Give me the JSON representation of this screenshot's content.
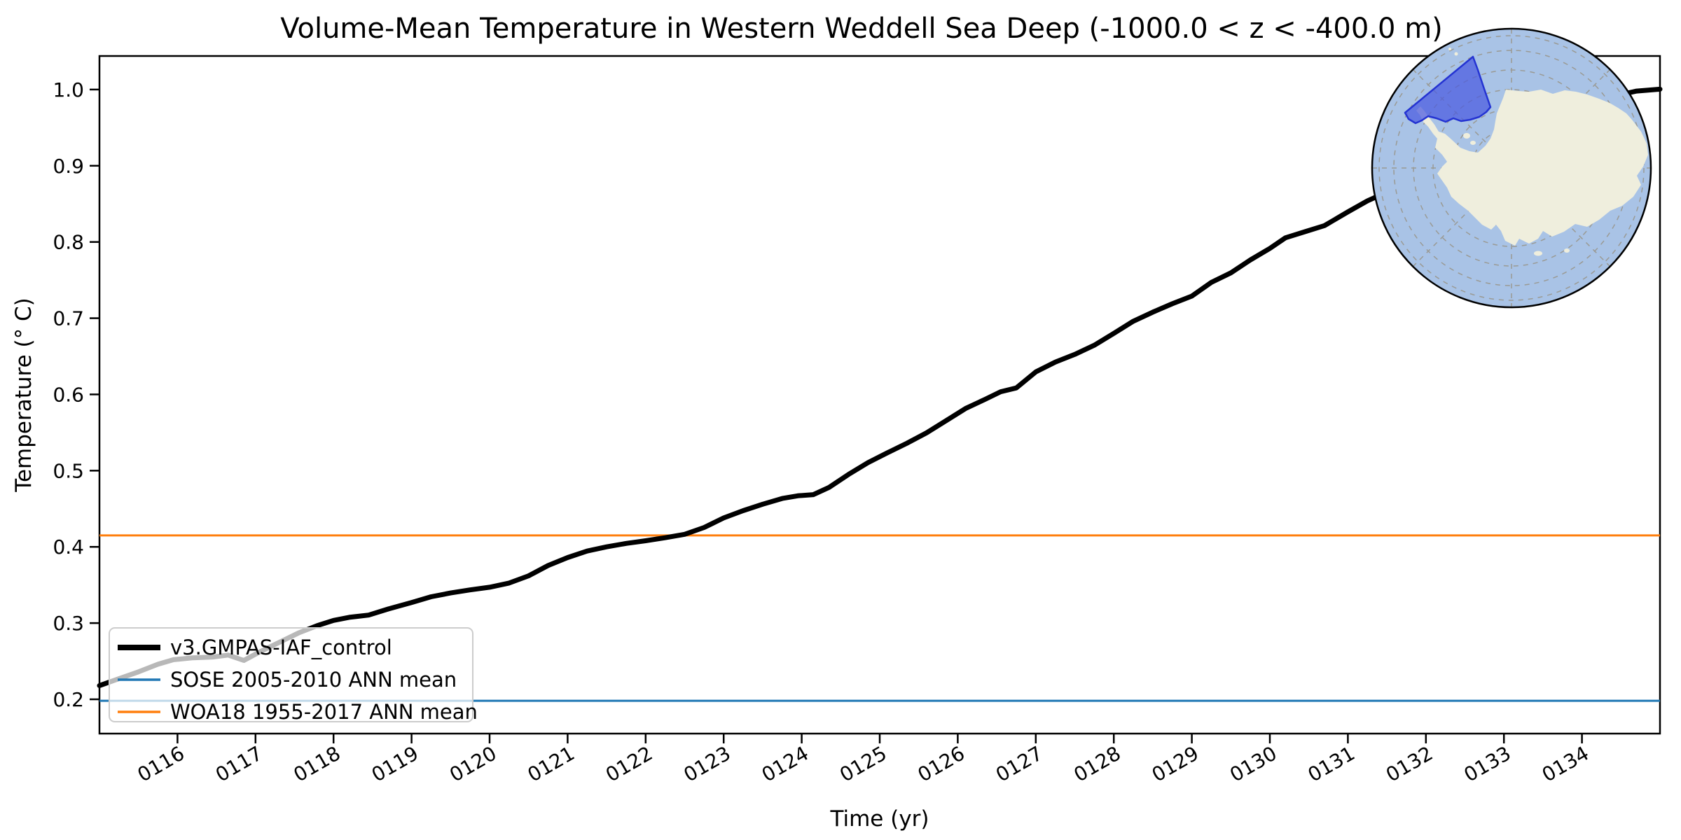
{
  "figure": {
    "background": "#ffffff"
  },
  "title": "Volume-Mean Temperature in Western Weddell Sea Deep (-1000.0 < z < -400.0 m)",
  "chart_data": {
    "type": "line",
    "title": "Volume-Mean Temperature in Western Weddell Sea Deep (-1000.0 < z < -400.0 m)",
    "xlabel": "Time (yr)",
    "ylabel": "Temperature (° C)",
    "xlim": [
      115.0,
      135.0
    ],
    "ylim": [
      0.155,
      1.044
    ],
    "grid": false,
    "legend_position": "lower left",
    "x_tick_values": [
      116,
      117,
      118,
      119,
      120,
      121,
      122,
      123,
      124,
      125,
      126,
      127,
      128,
      129,
      130,
      131,
      132,
      133,
      134
    ],
    "x_tick_labels": [
      "0116",
      "0117",
      "0118",
      "0119",
      "0120",
      "0121",
      "0122",
      "0123",
      "0124",
      "0125",
      "0126",
      "0127",
      "0128",
      "0129",
      "0130",
      "0131",
      "0132",
      "0133",
      "0134"
    ],
    "y_tick_values": [
      0.2,
      0.3,
      0.4,
      0.5,
      0.6,
      0.7,
      0.8,
      0.9,
      1.0
    ],
    "y_tick_labels": [
      "0.2",
      "0.3",
      "0.4",
      "0.5",
      "0.6",
      "0.7",
      "0.8",
      "0.9",
      "1.0"
    ],
    "series": [
      {
        "name": "v3.GMPAS-IAF_control",
        "color": "#000000",
        "line_width": 7,
        "points": [
          [
            115.0,
            0.218
          ],
          [
            115.25,
            0.227
          ],
          [
            115.5,
            0.236
          ],
          [
            115.75,
            0.246
          ],
          [
            115.95,
            0.252
          ],
          [
            116.2,
            0.2545
          ],
          [
            116.45,
            0.2555
          ],
          [
            116.65,
            0.258
          ],
          [
            116.85,
            0.251
          ],
          [
            117.05,
            0.262
          ],
          [
            117.3,
            0.2745
          ],
          [
            117.55,
            0.287
          ],
          [
            117.8,
            0.297
          ],
          [
            118.0,
            0.3035
          ],
          [
            118.2,
            0.3075
          ],
          [
            118.45,
            0.3105
          ],
          [
            118.7,
            0.3185
          ],
          [
            119.0,
            0.327
          ],
          [
            119.25,
            0.3345
          ],
          [
            119.5,
            0.3395
          ],
          [
            119.75,
            0.3435
          ],
          [
            120.0,
            0.347
          ],
          [
            120.25,
            0.3525
          ],
          [
            120.5,
            0.362
          ],
          [
            120.75,
            0.3755
          ],
          [
            121.0,
            0.386
          ],
          [
            121.25,
            0.3945
          ],
          [
            121.5,
            0.4
          ],
          [
            121.75,
            0.4045
          ],
          [
            122.0,
            0.408
          ],
          [
            122.25,
            0.412
          ],
          [
            122.5,
            0.4165
          ],
          [
            122.75,
            0.4255
          ],
          [
            123.0,
            0.438
          ],
          [
            123.25,
            0.4475
          ],
          [
            123.5,
            0.456
          ],
          [
            123.75,
            0.4635
          ],
          [
            123.95,
            0.467
          ],
          [
            124.15,
            0.4685
          ],
          [
            124.35,
            0.478
          ],
          [
            124.6,
            0.495
          ],
          [
            124.85,
            0.5105
          ],
          [
            125.1,
            0.5235
          ],
          [
            125.35,
            0.536
          ],
          [
            125.6,
            0.5495
          ],
          [
            125.85,
            0.5655
          ],
          [
            126.1,
            0.5815
          ],
          [
            126.35,
            0.5935
          ],
          [
            126.55,
            0.6035
          ],
          [
            126.75,
            0.6085
          ],
          [
            127.0,
            0.6295
          ],
          [
            127.25,
            0.6425
          ],
          [
            127.5,
            0.6525
          ],
          [
            127.75,
            0.6645
          ],
          [
            128.0,
            0.68
          ],
          [
            128.25,
            0.696
          ],
          [
            128.5,
            0.708
          ],
          [
            128.75,
            0.719
          ],
          [
            129.0,
            0.729
          ],
          [
            129.25,
            0.747
          ],
          [
            129.5,
            0.7595
          ],
          [
            129.75,
            0.7765
          ],
          [
            130.0,
            0.7915
          ],
          [
            130.2,
            0.8055
          ],
          [
            130.45,
            0.8135
          ],
          [
            130.7,
            0.8215
          ],
          [
            131.0,
            0.8395
          ],
          [
            131.25,
            0.854
          ],
          [
            131.5,
            0.8655
          ],
          [
            131.75,
            0.8775
          ],
          [
            132.0,
            0.8905
          ],
          [
            132.25,
            0.8985
          ],
          [
            132.5,
            0.9075
          ],
          [
            132.75,
            0.9185
          ],
          [
            133.0,
            0.9335
          ],
          [
            133.25,
            0.9435
          ],
          [
            133.5,
            0.954
          ],
          [
            133.75,
            0.9665
          ],
          [
            134.0,
            0.9755
          ],
          [
            134.25,
            0.9855
          ],
          [
            134.5,
            0.9935
          ],
          [
            134.7,
            0.998
          ],
          [
            135.0,
            1.0005
          ]
        ]
      },
      {
        "name": "SOSE 2005-2010 ANN mean",
        "color": "#1f77b4",
        "line_width": 3,
        "constant_value": 0.198
      },
      {
        "name": "WOA18 1955-2017 ANN mean",
        "color": "#ff7f0e",
        "line_width": 3,
        "constant_value": 0.415
      }
    ]
  },
  "inset_map": {
    "ocean_color": "#a9c3e6",
    "land_color": "#efeedd",
    "region_fill_color": "#4a5ae0",
    "region_edge_color": "#2433d2",
    "graticule_color": "#9a9a94",
    "rim_color": "#000000"
  },
  "legend": {
    "background": "rgba(255,255,255,0.72)",
    "border_color": "#cccccc"
  }
}
